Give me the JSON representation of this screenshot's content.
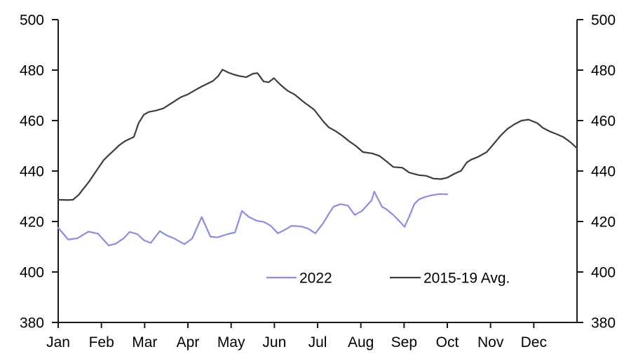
{
  "chart_data": {
    "type": "line",
    "title": "",
    "background": "#ffffff",
    "axis_color": "#1a1a1a",
    "text_color": "#000000",
    "grid": false,
    "x_axis": {
      "unit": "month",
      "range_months": [
        0,
        12
      ],
      "tick_labels": [
        "Jan",
        "Feb",
        "Mar",
        "Apr",
        "May",
        "Jun",
        "Jul",
        "Aug",
        "Sep",
        "Oct",
        "Nov",
        "Dec"
      ]
    },
    "y_axis": {
      "range": [
        380,
        500
      ],
      "ticks": [
        380,
        400,
        420,
        440,
        460,
        480,
        500
      ],
      "sides": [
        "left",
        "right"
      ]
    },
    "legend": {
      "position": "inside-bottom-center",
      "labels": [
        "2022",
        "2015-19 Avg."
      ]
    },
    "series": [
      {
        "name": "2022",
        "color": "#8b8bec",
        "points": [
          [
            0.0,
            417.5
          ],
          [
            0.23,
            412.9
          ],
          [
            0.44,
            413.3
          ],
          [
            0.7,
            416.0
          ],
          [
            0.92,
            415.2
          ],
          [
            1.17,
            410.5
          ],
          [
            1.33,
            411.2
          ],
          [
            1.52,
            413.4
          ],
          [
            1.65,
            415.9
          ],
          [
            1.83,
            415.0
          ],
          [
            1.98,
            412.6
          ],
          [
            2.14,
            411.5
          ],
          [
            2.35,
            416.2
          ],
          [
            2.51,
            414.5
          ],
          [
            2.68,
            413.3
          ],
          [
            2.92,
            411.0
          ],
          [
            3.1,
            413.3
          ],
          [
            3.32,
            421.8
          ],
          [
            3.52,
            414.0
          ],
          [
            3.68,
            413.7
          ],
          [
            3.92,
            415.0
          ],
          [
            4.09,
            415.7
          ],
          [
            4.25,
            424.2
          ],
          [
            4.41,
            421.8
          ],
          [
            4.59,
            420.3
          ],
          [
            4.75,
            419.9
          ],
          [
            4.91,
            418.4
          ],
          [
            5.08,
            415.3
          ],
          [
            5.24,
            416.7
          ],
          [
            5.4,
            418.3
          ],
          [
            5.63,
            418.0
          ],
          [
            5.79,
            417.1
          ],
          [
            5.95,
            415.3
          ],
          [
            6.13,
            419.4
          ],
          [
            6.28,
            423.6
          ],
          [
            6.37,
            425.9
          ],
          [
            6.53,
            426.9
          ],
          [
            6.7,
            426.3
          ],
          [
            6.86,
            422.6
          ],
          [
            7.02,
            424.1
          ],
          [
            7.25,
            428.4
          ],
          [
            7.31,
            431.9
          ],
          [
            7.49,
            425.8
          ],
          [
            7.59,
            424.9
          ],
          [
            7.75,
            422.6
          ],
          [
            7.91,
            419.8
          ],
          [
            8.01,
            417.9
          ],
          [
            8.12,
            422.0
          ],
          [
            8.24,
            427.0
          ],
          [
            8.35,
            428.8
          ],
          [
            8.48,
            429.7
          ],
          [
            8.64,
            430.4
          ],
          [
            8.81,
            430.9
          ],
          [
            9.0,
            430.8
          ]
        ]
      },
      {
        "name": "2015-19 Avg.",
        "color": "#3d3d3d",
        "points": [
          [
            0.0,
            428.6
          ],
          [
            0.23,
            428.5
          ],
          [
            0.34,
            428.6
          ],
          [
            0.47,
            430.5
          ],
          [
            0.7,
            435.5
          ],
          [
            0.92,
            441.0
          ],
          [
            1.05,
            444.3
          ],
          [
            1.17,
            446.3
          ],
          [
            1.3,
            448.4
          ],
          [
            1.41,
            450.2
          ],
          [
            1.54,
            451.8
          ],
          [
            1.67,
            452.9
          ],
          [
            1.75,
            453.5
          ],
          [
            1.86,
            459.0
          ],
          [
            1.98,
            462.3
          ],
          [
            2.09,
            463.4
          ],
          [
            2.27,
            464.0
          ],
          [
            2.43,
            464.8
          ],
          [
            2.63,
            467.0
          ],
          [
            2.84,
            469.3
          ],
          [
            3.0,
            470.4
          ],
          [
            3.16,
            472.0
          ],
          [
            3.32,
            473.5
          ],
          [
            3.45,
            474.6
          ],
          [
            3.58,
            475.7
          ],
          [
            3.7,
            477.6
          ],
          [
            3.8,
            480.2
          ],
          [
            3.94,
            479.0
          ],
          [
            4.07,
            478.2
          ],
          [
            4.2,
            477.6
          ],
          [
            4.35,
            477.2
          ],
          [
            4.51,
            478.6
          ],
          [
            4.61,
            478.8
          ],
          [
            4.75,
            475.5
          ],
          [
            4.87,
            475.2
          ],
          [
            4.99,
            476.8
          ],
          [
            5.14,
            474.2
          ],
          [
            5.3,
            471.9
          ],
          [
            5.48,
            470.2
          ],
          [
            5.66,
            467.6
          ],
          [
            5.92,
            464.3
          ],
          [
            6.13,
            459.7
          ],
          [
            6.26,
            457.3
          ],
          [
            6.41,
            455.9
          ],
          [
            6.57,
            454.0
          ],
          [
            6.73,
            451.8
          ],
          [
            6.89,
            449.9
          ],
          [
            7.05,
            447.5
          ],
          [
            7.26,
            447.0
          ],
          [
            7.43,
            446.0
          ],
          [
            7.59,
            443.9
          ],
          [
            7.75,
            441.6
          ],
          [
            7.96,
            441.3
          ],
          [
            8.12,
            439.4
          ],
          [
            8.34,
            438.4
          ],
          [
            8.51,
            438.1
          ],
          [
            8.68,
            437.0
          ],
          [
            8.85,
            436.8
          ],
          [
            9.0,
            437.4
          ],
          [
            9.16,
            438.9
          ],
          [
            9.32,
            440.1
          ],
          [
            9.45,
            443.4
          ],
          [
            9.55,
            444.5
          ],
          [
            9.71,
            445.6
          ],
          [
            9.91,
            447.5
          ],
          [
            10.07,
            450.7
          ],
          [
            10.23,
            454.0
          ],
          [
            10.39,
            456.7
          ],
          [
            10.56,
            458.6
          ],
          [
            10.72,
            460.0
          ],
          [
            10.88,
            460.4
          ],
          [
            11.08,
            459.0
          ],
          [
            11.21,
            457.1
          ],
          [
            11.37,
            455.7
          ],
          [
            11.53,
            454.6
          ],
          [
            11.69,
            453.4
          ],
          [
            11.85,
            451.4
          ],
          [
            12.0,
            449.0
          ]
        ]
      }
    ]
  }
}
